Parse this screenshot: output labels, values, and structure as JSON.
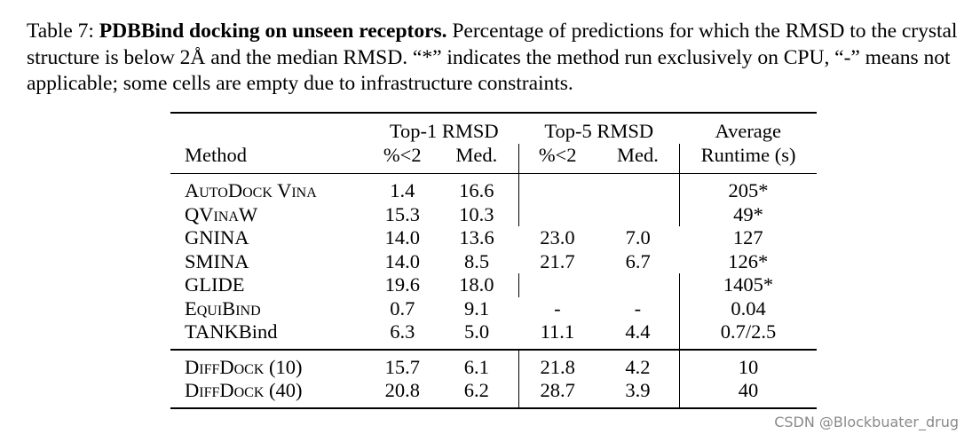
{
  "caption": {
    "label": "Table 7:",
    "title": "PDBBind docking on unseen receptors.",
    "text": "Percentage of predictions for which the RMSD to the crystal structure is below 2Å and the median RMSD. “*” indicates the method run exclusively on CPU, “-” means not applicable; some cells are empty due to infrastructure constraints."
  },
  "table": {
    "header": {
      "top1_group": "Top-1 RMSD",
      "top5_group": "Top-5 RMSD",
      "runtime_top": "Average",
      "method": "Method",
      "pct_lt2_a": "%<2",
      "med_a": "Med.",
      "pct_lt2_b": "%<2",
      "med_b": "Med.",
      "runtime_bottom": "Runtime (s)"
    },
    "rows": [
      {
        "method": "AutoDock Vina",
        "t1_pct": "1.4",
        "t1_med": "16.6",
        "t5_pct": "",
        "t5_med": "",
        "runtime": "205*"
      },
      {
        "method": "QVinaW",
        "t1_pct": "15.3",
        "t1_med": "10.3",
        "t5_pct": "",
        "t5_med": "",
        "runtime": "49*"
      },
      {
        "method": "GNINA",
        "t1_pct": "14.0",
        "t1_med": "13.6",
        "t5_pct": "23.0",
        "t5_med": "7.0",
        "runtime": "127"
      },
      {
        "method": "SMINA",
        "t1_pct": "14.0",
        "t1_med": "8.5",
        "t5_pct": "21.7",
        "t5_med": "6.7",
        "runtime": "126*"
      },
      {
        "method": "GLIDE",
        "t1_pct": "19.6",
        "t1_med": "18.0",
        "t5_pct": "",
        "t5_med": "",
        "runtime": "1405*"
      },
      {
        "method": "EquiBind",
        "t1_pct": "0.7",
        "t1_med": "9.1",
        "t5_pct": "-",
        "t5_med": "-",
        "runtime": "0.04"
      },
      {
        "method": "TANKBind",
        "t1_pct": "6.3",
        "t1_med": "5.0",
        "t5_pct": "11.1",
        "t5_med": "4.4",
        "runtime": "0.7/2.5"
      }
    ],
    "ours": [
      {
        "method": "DiffDock (10)",
        "t1_pct": "15.7",
        "t1_med": "6.1",
        "t5_pct": "21.8",
        "t5_med": "4.2",
        "runtime": "10"
      },
      {
        "method": "DiffDock (40)",
        "t1_pct": "20.8",
        "t1_med": "6.2",
        "t5_pct": "28.7",
        "t5_med": "3.9",
        "runtime": "40"
      }
    ]
  },
  "watermark": "CSDN @Blockbuater_drug"
}
